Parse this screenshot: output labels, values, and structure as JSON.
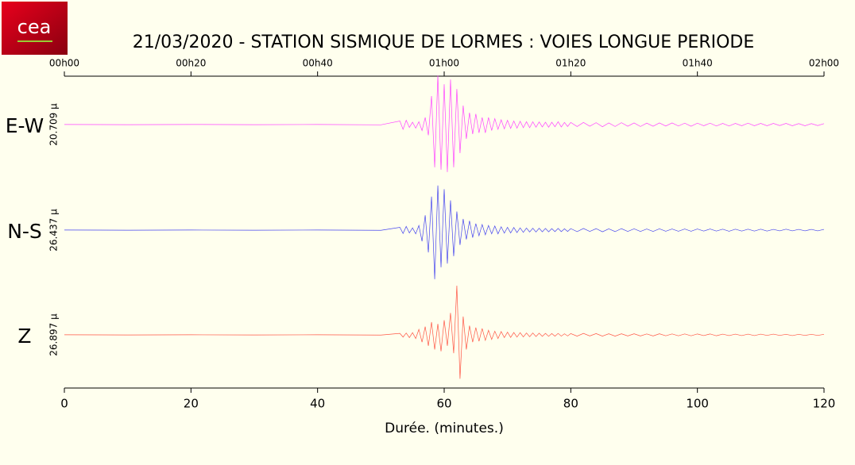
{
  "logo": "cea",
  "chart_data": {
    "type": "line",
    "title": "21/03/2020  -  STATION SISMIQUE DE LORMES : VOIES LONGUE PERIODE",
    "xlabel": "Durée.  (minutes.)",
    "xlim": [
      0,
      120
    ],
    "xticks": [
      0,
      20,
      40,
      60,
      80,
      100,
      120
    ],
    "x2ticks": [
      {
        "value": 0,
        "label": "00h00"
      },
      {
        "value": 20,
        "label": "00h20"
      },
      {
        "value": 40,
        "label": "00h40"
      },
      {
        "value": 60,
        "label": "01h00"
      },
      {
        "value": 80,
        "label": "01h20"
      },
      {
        "value": 100,
        "label": "01h40"
      },
      {
        "value": 120,
        "label": "02h00"
      }
    ],
    "x": [
      0,
      10,
      20,
      30,
      40,
      50,
      53,
      53.5,
      54,
      54.5,
      55,
      55.5,
      56,
      56.5,
      57,
      57.5,
      58,
      58.5,
      59,
      59.5,
      60,
      60.5,
      61,
      61.5,
      62,
      62.5,
      63,
      63.5,
      64,
      64.5,
      65,
      65.5,
      66,
      66.5,
      67,
      67.5,
      68,
      68.5,
      69,
      69.5,
      70,
      70.5,
      71,
      71.5,
      72,
      72.5,
      73,
      73.5,
      74,
      74.5,
      75,
      75.5,
      76,
      76.5,
      77,
      77.5,
      78,
      78.5,
      79,
      79.5,
      80,
      81,
      82,
      83,
      84,
      85,
      86,
      87,
      88,
      89,
      90,
      91,
      92,
      93,
      94,
      95,
      96,
      97,
      98,
      99,
      100,
      101,
      102,
      103,
      104,
      105,
      106,
      107,
      108,
      109,
      110,
      111,
      112,
      113,
      114,
      115,
      116,
      117,
      118,
      119,
      120
    ],
    "series": [
      {
        "name": "E-W",
        "color": "#ff44ff",
        "ylim": [
          -20.709,
          20.709
        ],
        "scale_label": "20.709 µ",
        "values": [
          0.05,
          -0.05,
          0.05,
          -0.05,
          0.05,
          -0.1,
          1.5,
          -2,
          1.8,
          -1.2,
          1,
          -1.5,
          1.2,
          -2.5,
          3,
          -4.5,
          12,
          -18,
          20.7,
          -19,
          17,
          -20,
          19,
          -18,
          15,
          -12,
          8,
          -6,
          5,
          -4,
          4.5,
          -3.5,
          3,
          -3.5,
          3,
          -2.5,
          2.5,
          -2,
          2,
          -1.8,
          1.8,
          -1.6,
          1.5,
          -1.5,
          1.4,
          -1.3,
          1.2,
          -1.3,
          1.2,
          -1.1,
          1.1,
          -1,
          1,
          -1.1,
          1,
          -0.9,
          1.2,
          -1,
          0.9,
          -0.8,
          0.9,
          -0.8,
          0.9,
          -0.7,
          0.8,
          -0.9,
          0.7,
          -0.8,
          0.8,
          -0.7,
          0.7,
          -0.8,
          0.6,
          -0.7,
          0.7,
          -0.6,
          0.7,
          -0.6,
          0.6,
          -0.7,
          0.6,
          -0.5,
          0.6,
          -0.6,
          0.5,
          -0.6,
          0.5,
          -0.5,
          0.6,
          -0.5,
          0.5,
          -0.5,
          0.5,
          -0.4,
          0.5,
          -0.5,
          0.4,
          -0.5,
          0.4,
          -0.4,
          0.4
        ]
      },
      {
        "name": "N-S",
        "color": "#4444ee",
        "ylim": [
          -26.437,
          26.437
        ],
        "scale_label": "26.437 µ",
        "values": [
          0.05,
          -0.05,
          0.05,
          -0.05,
          0.05,
          -0.1,
          1.5,
          -1.8,
          2,
          -1.5,
          1.2,
          -2,
          2.5,
          -6,
          8,
          -12,
          18,
          -26.4,
          24,
          -20,
          22,
          -18,
          16,
          -14,
          10,
          -8,
          6,
          -5,
          5,
          -4,
          3.5,
          -3,
          3,
          -2.5,
          2.5,
          -2,
          2.2,
          -2,
          1.8,
          -1.6,
          1.5,
          -1.5,
          1.4,
          -1.3,
          1.2,
          -1.2,
          1.1,
          -1,
          1,
          -1,
          1,
          -0.9,
          0.9,
          -0.9,
          0.8,
          -0.8,
          0.9,
          -0.8,
          0.7,
          -0.7,
          0.8,
          -0.8,
          0.9,
          -0.7,
          0.8,
          -0.9,
          0.7,
          -0.8,
          0.8,
          -0.7,
          0.7,
          -0.7,
          0.6,
          -0.7,
          0.7,
          -0.6,
          0.6,
          -0.6,
          0.6,
          -0.6,
          0.6,
          -0.5,
          0.6,
          -0.5,
          0.5,
          -0.6,
          0.5,
          -0.5,
          0.5,
          -0.5,
          0.5,
          -0.5,
          0.4,
          -0.4,
          0.5,
          -0.4,
          0.4,
          -0.4,
          0.4,
          -0.4,
          0.4
        ]
      },
      {
        "name": "Z",
        "color": "#ff5544",
        "ylim": [
          -26.897,
          26.897
        ],
        "scale_label": "26.897 µ",
        "values": [
          0.05,
          -0.05,
          0.05,
          -0.05,
          0.05,
          -0.1,
          0.8,
          -1.2,
          1,
          -1.5,
          1.2,
          -2,
          3,
          -4,
          4.5,
          -6,
          7,
          -8,
          6,
          -9,
          8,
          -6,
          12,
          -10,
          26.9,
          -24,
          10,
          -8,
          5,
          -4,
          4,
          -3.5,
          3.5,
          -3,
          2.5,
          -2.5,
          2,
          -2,
          1.8,
          -1.5,
          1.5,
          -1.4,
          1.3,
          -1.2,
          1.2,
          -1.1,
          1,
          -1,
          1,
          -0.9,
          0.9,
          -0.8,
          0.8,
          -0.8,
          0.7,
          -0.7,
          0.8,
          -0.7,
          0.6,
          -0.6,
          0.7,
          -0.7,
          0.8,
          -0.6,
          0.7,
          -0.7,
          0.6,
          -0.7,
          0.6,
          -0.6,
          0.6,
          -0.6,
          0.5,
          -0.6,
          0.6,
          -0.5,
          0.5,
          -0.5,
          0.5,
          -0.5,
          0.5,
          -0.4,
          0.5,
          -0.5,
          0.4,
          -0.4,
          0.4,
          -0.4,
          0.4,
          -0.4,
          0.4,
          -0.3,
          0.4,
          -0.3,
          0.3,
          -0.4,
          0.3,
          -0.3,
          0.3,
          -0.3,
          0.3
        ]
      }
    ]
  }
}
